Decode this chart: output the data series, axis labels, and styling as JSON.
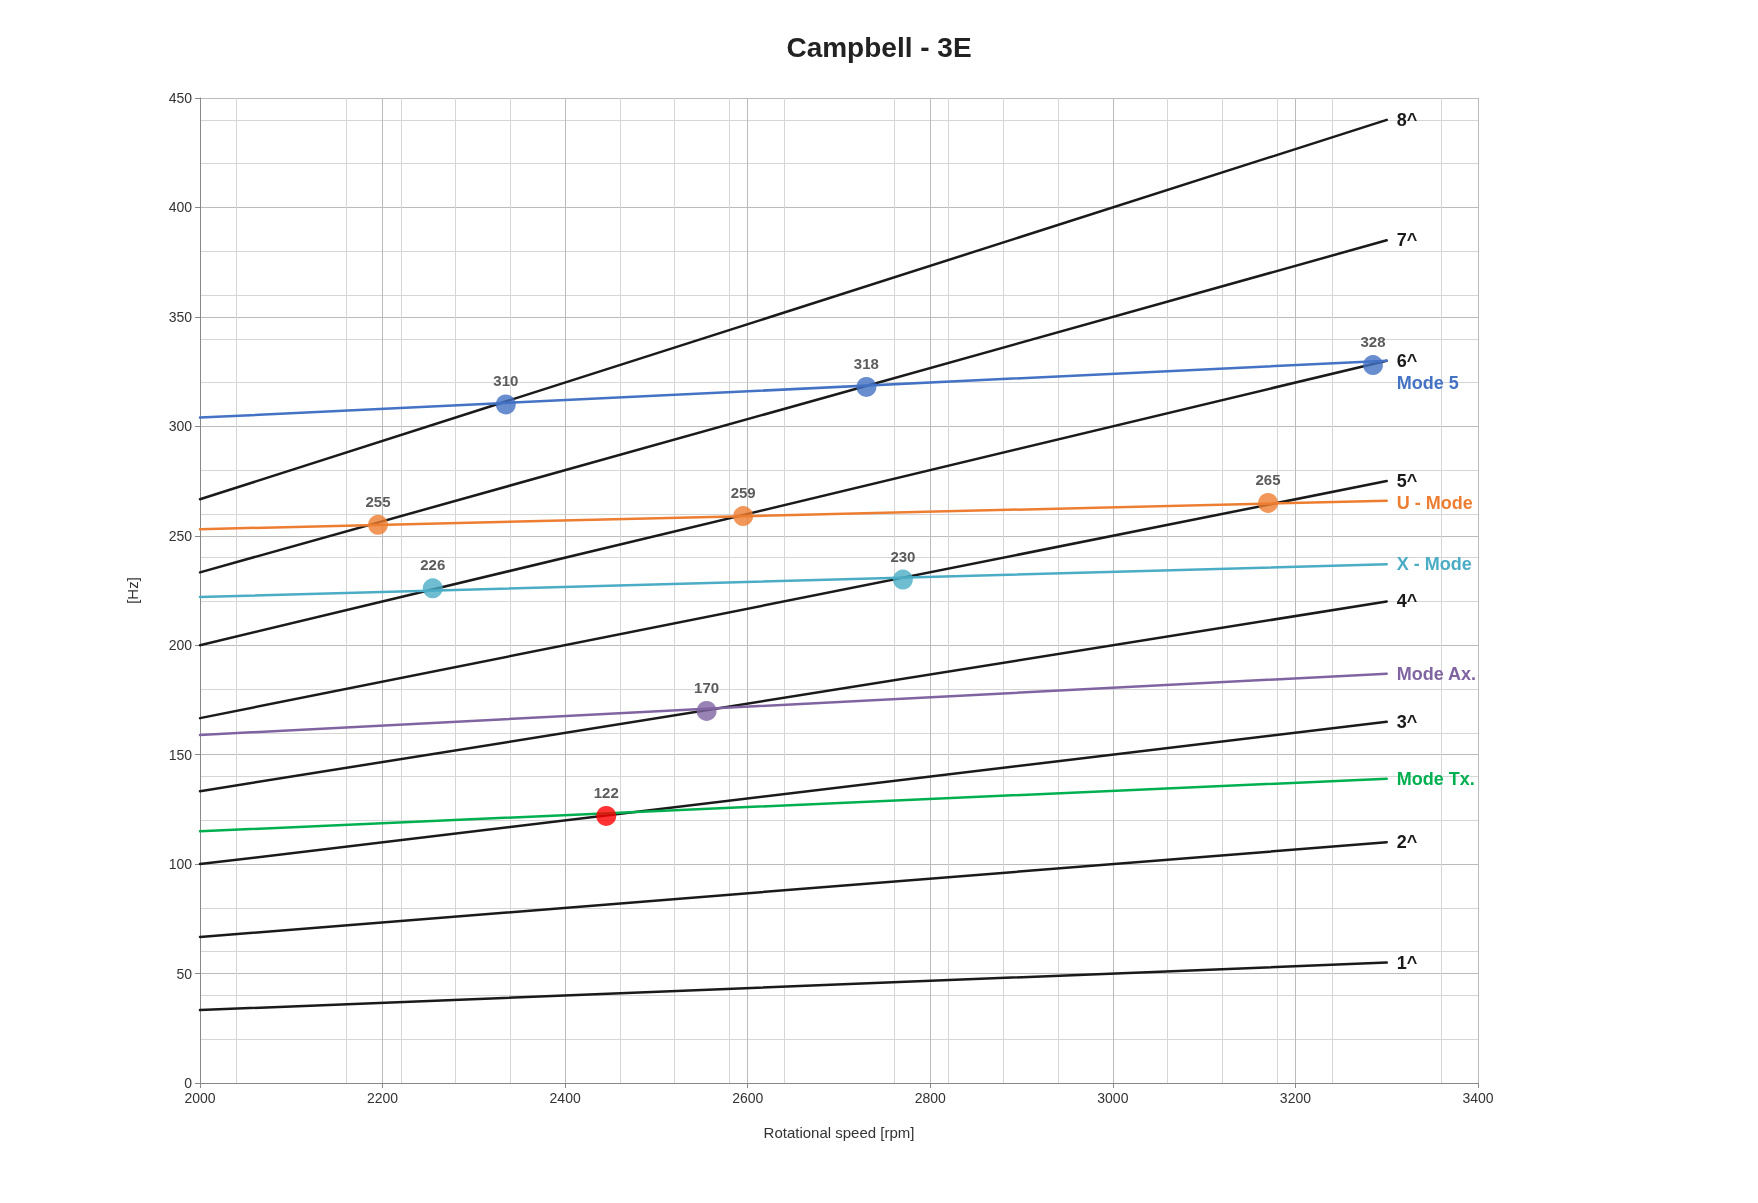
{
  "chart_data": {
    "type": "line",
    "title": "Campbell - 3E",
    "xlabel": "Rotational speed [rpm]",
    "ylabel": "[Hz]",
    "xlim": [
      2000,
      3400
    ],
    "xticks": [
      2000,
      2200,
      2400,
      2600,
      2800,
      3000,
      3200,
      3400
    ],
    "ylim": [
      0,
      450
    ],
    "yticks": [
      0,
      50,
      100,
      150,
      200,
      250,
      300,
      350,
      400,
      450
    ],
    "grid": true,
    "legend": false,
    "marker": "none",
    "series": [
      {
        "name": "1^",
        "color": "#1a1a1a",
        "x": [
          2000,
          3300
        ],
        "values": [
          33.3,
          55
        ]
      },
      {
        "name": "2^",
        "color": "#1a1a1a",
        "x": [
          2000,
          3300
        ],
        "values": [
          66.7,
          110
        ]
      },
      {
        "name": "3^",
        "color": "#1a1a1a",
        "x": [
          2000,
          3300
        ],
        "values": [
          100,
          165
        ]
      },
      {
        "name": "4^",
        "color": "#1a1a1a",
        "x": [
          2000,
          3300
        ],
        "values": [
          133.3,
          220
        ]
      },
      {
        "name": "5^",
        "color": "#1a1a1a",
        "x": [
          2000,
          3300
        ],
        "values": [
          166.7,
          275
        ]
      },
      {
        "name": "6^",
        "color": "#1a1a1a",
        "x": [
          2000,
          3300
        ],
        "values": [
          200,
          330
        ]
      },
      {
        "name": "7^",
        "color": "#1a1a1a",
        "x": [
          2000,
          3300
        ],
        "values": [
          233.3,
          385
        ]
      },
      {
        "name": "8^",
        "color": "#1a1a1a",
        "x": [
          2000,
          3300
        ],
        "values": [
          266.7,
          440
        ]
      },
      {
        "name": "Mode 5",
        "color": "#4472c4",
        "x": [
          2000,
          3300
        ],
        "values": [
          304,
          330
        ]
      },
      {
        "name": "U - Mode",
        "color": "#ed7d31",
        "x": [
          2000,
          3300
        ],
        "values": [
          253,
          266
        ]
      },
      {
        "name": "X - Mode",
        "color": "#4bacc6",
        "x": [
          2000,
          3300
        ],
        "values": [
          222,
          237
        ]
      },
      {
        "name": "Mode Ax.",
        "color": "#8064a2",
        "x": [
          2000,
          3300
        ],
        "values": [
          159,
          187
        ]
      },
      {
        "name": "Mode Tx.",
        "color": "#00b050",
        "x": [
          2000,
          3300
        ],
        "values": [
          115,
          139
        ]
      },
      {
        "type": "scatter",
        "marker": "circle",
        "color": "#4472c4",
        "x": [
          2335,
          2730,
          3285
        ],
        "values": [
          310,
          318,
          328
        ],
        "value_labels": [
          "310",
          "318",
          "328"
        ]
      },
      {
        "type": "scatter",
        "marker": "circle",
        "color": "#ed7d31",
        "x": [
          2195,
          2595,
          3170
        ],
        "values": [
          255,
          259,
          265
        ],
        "value_labels": [
          "255",
          "259",
          "265"
        ]
      },
      {
        "type": "scatter",
        "marker": "circle",
        "color": "#4bacc6",
        "x": [
          2255,
          2770
        ],
        "values": [
          226,
          230
        ],
        "value_labels": [
          "226",
          "230"
        ]
      },
      {
        "type": "scatter",
        "marker": "circle",
        "color": "#8064a2",
        "x": [
          2555
        ],
        "values": [
          170
        ],
        "value_labels": [
          "170"
        ]
      },
      {
        "type": "scatter",
        "marker": "circle",
        "color": "#ff0000",
        "x": [
          2445
        ],
        "values": [
          122
        ],
        "value_labels": [
          "122"
        ]
      }
    ]
  }
}
